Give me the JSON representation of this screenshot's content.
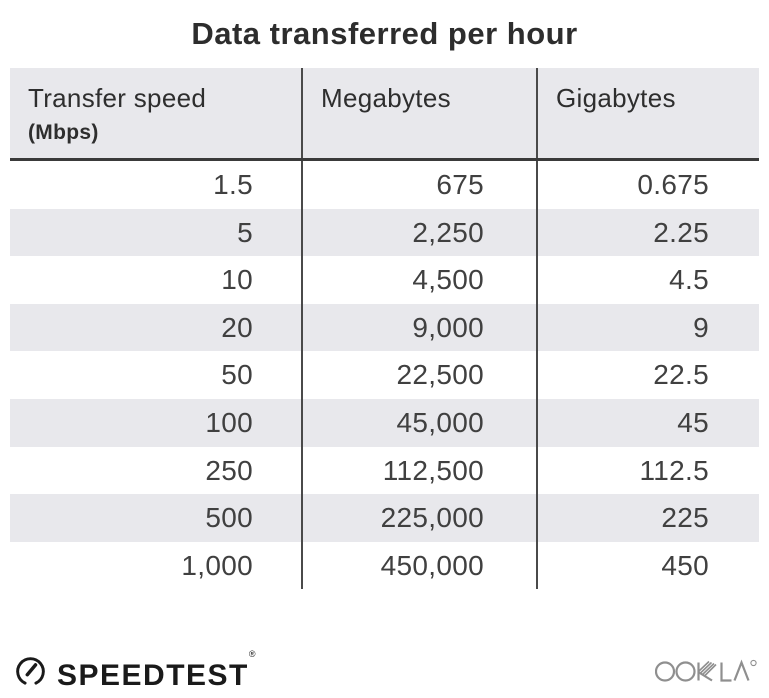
{
  "title": "Data transferred per hour",
  "table": {
    "columns": [
      {
        "label": "Transfer speed",
        "sublabel": "(Mbps)"
      },
      {
        "label": "Megabytes",
        "sublabel": ""
      },
      {
        "label": "Gigabytes",
        "sublabel": ""
      }
    ],
    "rows": [
      [
        "1.5",
        "675",
        "0.675"
      ],
      [
        "5",
        "2,250",
        "2.25"
      ],
      [
        "10",
        "4,500",
        "4.5"
      ],
      [
        "20",
        "9,000",
        "9"
      ],
      [
        "50",
        "22,500",
        "22.5"
      ],
      [
        "100",
        "45,000",
        "45"
      ],
      [
        "250",
        "112,500",
        "112.5"
      ],
      [
        "500",
        "225,000",
        "225"
      ],
      [
        "1,000",
        "450,000",
        "450"
      ]
    ]
  },
  "chart_data": {
    "type": "table",
    "title": "Data transferred per hour",
    "columns": [
      "Transfer speed (Mbps)",
      "Megabytes",
      "Gigabytes"
    ],
    "rows": [
      [
        1.5,
        675,
        0.675
      ],
      [
        5,
        2250,
        2.25
      ],
      [
        10,
        4500,
        4.5
      ],
      [
        20,
        9000,
        9
      ],
      [
        50,
        22500,
        22.5
      ],
      [
        100,
        45000,
        45
      ],
      [
        250,
        112500,
        112.5
      ],
      [
        500,
        225000,
        225
      ],
      [
        1000,
        450000,
        450
      ]
    ],
    "layout_hints": {
      "striped_rows": "even rows shaded",
      "value_alignment": "right",
      "column_dividers": true
    }
  },
  "footer": {
    "speedtest_label": "SPEEDTEST",
    "registered_mark": "®",
    "ookla_label": "OOKLA"
  },
  "colors": {
    "header_bg": "#e8e8ec",
    "stripe_bg": "#e8e8ec",
    "divider": "#4a4a4a",
    "header_border": "#3a3a3a",
    "title_text": "#2d2d2d",
    "cell_text": "#404040",
    "logo_black": "#1a1a1a",
    "ookla_gray": "#8f8f8f"
  }
}
